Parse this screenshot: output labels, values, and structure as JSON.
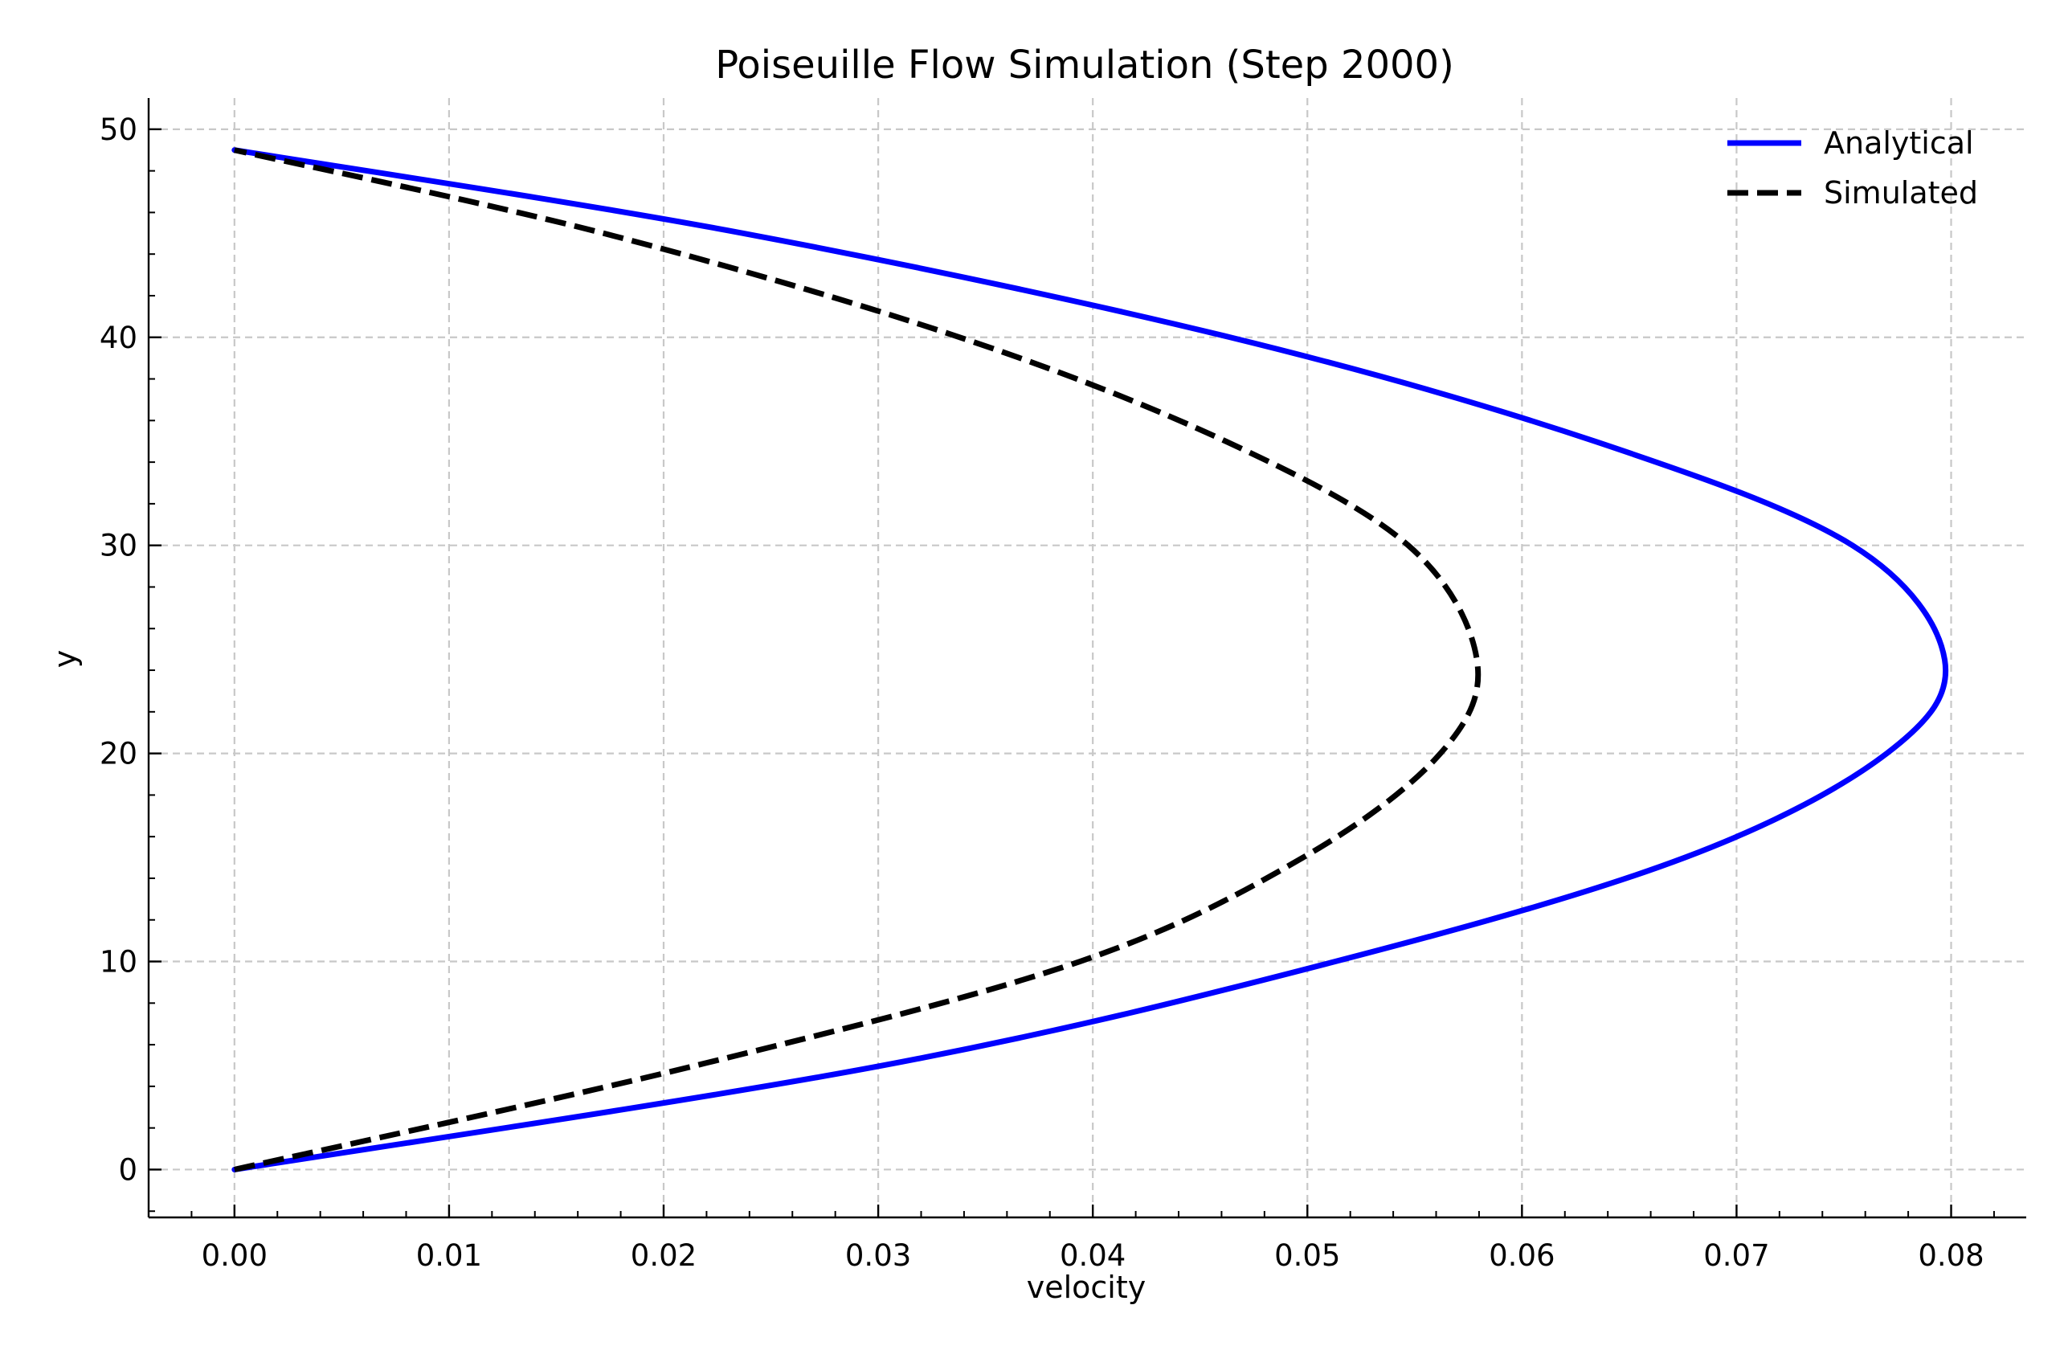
{
  "chart_data": {
    "type": "line",
    "title": "Poiseuille Flow Simulation (Step 2000)",
    "xlabel": "velocity",
    "ylabel": "y",
    "xlim": [
      -0.004,
      0.0835
    ],
    "ylim": [
      -2.3,
      51.5
    ],
    "x_ticks": [
      0.0,
      0.01,
      0.02,
      0.03,
      0.04,
      0.05,
      0.06,
      0.07,
      0.08
    ],
    "x_tick_labels": [
      "0.00",
      "0.01",
      "0.02",
      "0.03",
      "0.04",
      "0.05",
      "0.06",
      "0.07",
      "0.08"
    ],
    "y_ticks": [
      0,
      10,
      20,
      30,
      40,
      50
    ],
    "y_tick_labels": [
      "0",
      "10",
      "20",
      "30",
      "40",
      "50"
    ],
    "grid": true,
    "legend_position": "top-right",
    "series": [
      {
        "name": "Analytical",
        "color": "#0000ff",
        "line_style": "solid",
        "peak_velocity": 0.0797,
        "y": [
          0,
          5,
          10,
          15,
          20,
          24.5,
          30,
          35,
          40,
          45,
          49
        ],
        "x": [
          0.0,
          0.0302,
          0.0513,
          0.0676,
          0.077,
          0.0797,
          0.0754,
          0.0634,
          0.0464,
          0.0237,
          0.0
        ]
      },
      {
        "name": "Simulated",
        "color": "#000000",
        "line_style": "dashed",
        "peak_velocity": 0.0579,
        "y": [
          0,
          5,
          10,
          15,
          20,
          24.5,
          30,
          35,
          40,
          45,
          49
        ],
        "x": [
          0.0,
          0.0215,
          0.0394,
          0.0498,
          0.0562,
          0.0579,
          0.0547,
          0.0462,
          0.0338,
          0.0172,
          0.0
        ]
      }
    ]
  }
}
